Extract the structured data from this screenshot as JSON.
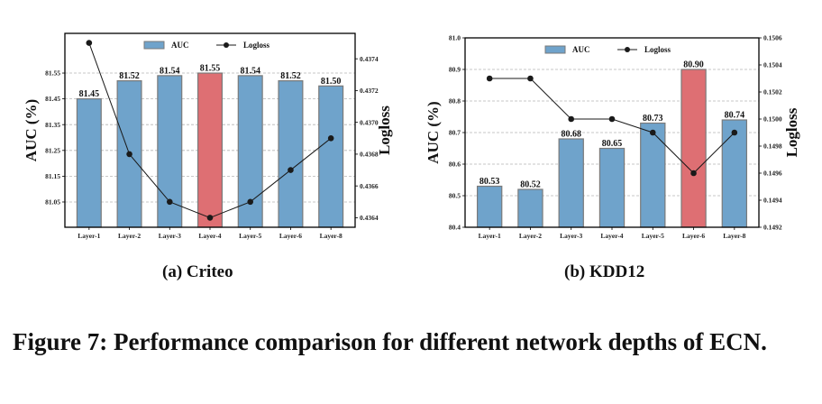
{
  "chart_data": [
    {
      "type": "bar",
      "subcaption": "(a) Criteo",
      "categories": [
        "Layer-1",
        "Layer-2",
        "Layer-3",
        "Layer-4",
        "Layer-5",
        "Layer-6",
        "Layer-8"
      ],
      "series": [
        {
          "name": "AUC",
          "type": "bar",
          "axis": "left",
          "values": [
            81.45,
            81.52,
            81.54,
            81.55,
            81.54,
            81.52,
            81.5
          ],
          "labels": [
            "81.45",
            "81.52",
            "81.54",
            "81.55",
            "81.54",
            "81.52",
            "81.50"
          ],
          "highlight_index": 3
        },
        {
          "name": "Logloss",
          "type": "line",
          "axis": "right",
          "values": [
            0.4375,
            0.4368,
            0.4365,
            0.4364,
            0.4365,
            0.4367,
            0.4369
          ]
        }
      ],
      "ylabel": "AUC (%)",
      "ylabel_right": "Logloss",
      "ylim": [
        80.952,
        81.704
      ],
      "yticks": [
        81.05,
        81.15,
        81.25,
        81.35,
        81.45,
        81.55
      ],
      "ytick_labels": [
        "81.05",
        "81.15",
        "81.25",
        "81.35",
        "81.45",
        "81.55"
      ],
      "ylim_right": [
        0.43634,
        0.43756
      ],
      "yticks_right": [
        0.4364,
        0.4366,
        0.4368,
        0.437,
        0.4372,
        0.4374
      ],
      "ytick_labels_right": [
        "0.4364",
        "0.4366",
        "0.4368",
        "0.4370",
        "0.4372",
        "0.4374"
      ],
      "grid": "y-dashed",
      "legend": [
        "AUC",
        "Logloss"
      ],
      "legend_position": "top-center",
      "colors": {
        "bar": "#6fa3cb",
        "highlight": "#de6f73",
        "edge": "#7a7a7a",
        "line": "#1a1a1a"
      }
    },
    {
      "type": "bar",
      "subcaption": "(b) KDD12",
      "categories": [
        "Layer-1",
        "Layer-2",
        "Layer-3",
        "Layer-4",
        "Layer-5",
        "Layer-6",
        "Layer-8"
      ],
      "series": [
        {
          "name": "AUC",
          "type": "bar",
          "axis": "left",
          "values": [
            80.53,
            80.52,
            80.68,
            80.65,
            80.73,
            80.9,
            80.74
          ],
          "labels": [
            "80.53",
            "80.52",
            "80.68",
            "80.65",
            "80.73",
            "80.90",
            "80.74"
          ],
          "highlight_index": 5
        },
        {
          "name": "Logloss",
          "type": "line",
          "axis": "right",
          "values": [
            0.1503,
            0.1503,
            0.15,
            0.15,
            0.1499,
            0.1496,
            0.1499
          ]
        }
      ],
      "ylabel": "AUC (%)",
      "ylabel_right": "Logloss",
      "ylim": [
        80.4,
        81.0
      ],
      "yticks": [
        80.4,
        80.5,
        80.6,
        80.7,
        80.8,
        80.9,
        81.0
      ],
      "ytick_labels": [
        "80.4",
        "80.5",
        "80.6",
        "80.7",
        "80.8",
        "80.9",
        "81.0"
      ],
      "ylim_right": [
        0.1492,
        0.1506
      ],
      "yticks_right": [
        0.1492,
        0.1494,
        0.1496,
        0.1498,
        0.15,
        0.1502,
        0.1504,
        0.1506
      ],
      "ytick_labels_right": [
        "0.1492",
        "0.1494",
        "0.1496",
        "0.1498",
        "0.1500",
        "0.1502",
        "0.1504",
        "0.1506"
      ],
      "grid": "y-dashed",
      "legend": [
        "AUC",
        "Logloss"
      ],
      "legend_position": "top-center",
      "colors": {
        "bar": "#6fa3cb",
        "highlight": "#de6f73",
        "edge": "#7a7a7a",
        "line": "#1a1a1a"
      }
    }
  ],
  "caption": "Figure 7: Performance comparison for different network depths of ECN."
}
